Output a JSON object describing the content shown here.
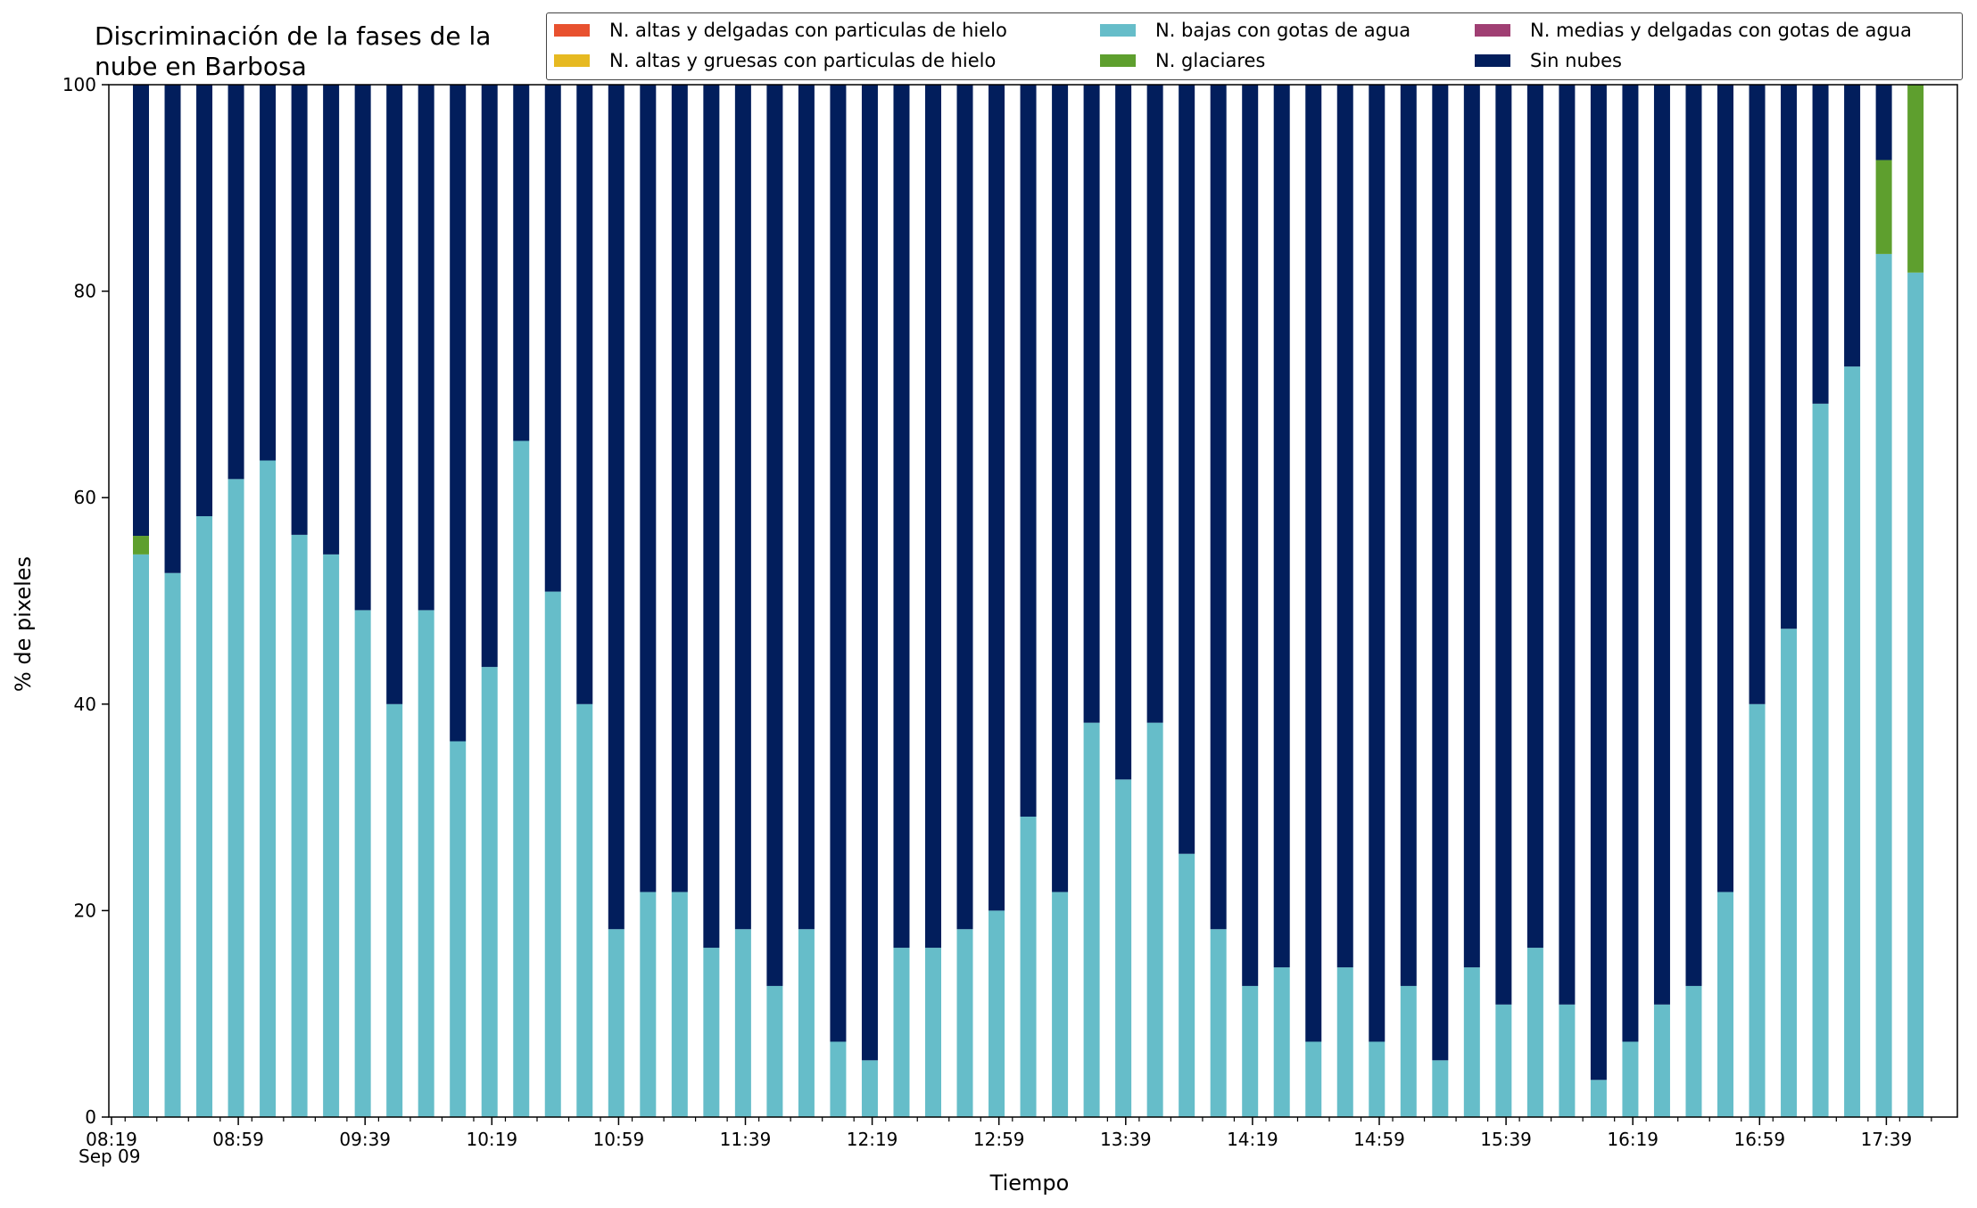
{
  "chart_data": {
    "type": "bar",
    "stacked": true,
    "title": "Discriminación de la fases de la\nnube en Barbosa",
    "xlabel": "Tiempo",
    "ylabel": "% de pixeles",
    "ylim": [
      0,
      100
    ],
    "yticks": [
      0,
      20,
      40,
      60,
      80,
      100
    ],
    "xticks": [
      "08:19",
      "08:59",
      "09:39",
      "10:19",
      "10:59",
      "11:39",
      "12:19",
      "12:59",
      "13:39",
      "14:19",
      "14:59",
      "15:39",
      "16:19",
      "16:59",
      "17:39"
    ],
    "x_sub_label": "Sep 09",
    "legend_position": "upper right, above plot",
    "series": [
      {
        "name": "N. altas y delgadas con particulas de hielo",
        "color": "#e8512f",
        "values": [
          0,
          0,
          0,
          0,
          0,
          0,
          0,
          0,
          0,
          0,
          0,
          0,
          0,
          0,
          0,
          0,
          0,
          0,
          0,
          0,
          0,
          0,
          0,
          0,
          0,
          0,
          0,
          0,
          0,
          0,
          0,
          0,
          0,
          0,
          0,
          0,
          0,
          0,
          0,
          0,
          0,
          0,
          0,
          0,
          0,
          0,
          0,
          0,
          0,
          0,
          0,
          0,
          0,
          0,
          0,
          0,
          0
        ]
      },
      {
        "name": "N. altas y gruesas con particulas de hielo",
        "color": "#e6b921",
        "values": [
          0,
          0,
          0,
          0,
          0,
          0,
          0,
          0,
          0,
          0,
          0,
          0,
          0,
          0,
          0,
          0,
          0,
          0,
          0,
          0,
          0,
          0,
          0,
          0,
          0,
          0,
          0,
          0,
          0,
          0,
          0,
          0,
          0,
          0,
          0,
          0,
          0,
          0,
          0,
          0,
          0,
          0,
          0,
          0,
          0,
          0,
          0,
          0,
          0,
          0,
          0,
          0,
          0,
          0,
          0,
          0,
          0
        ]
      },
      {
        "name": "N. bajas con gotas de agua",
        "color": "#66bdc9",
        "values": [
          54.5,
          52.7,
          58.2,
          61.8,
          63.6,
          56.4,
          54.5,
          49.1,
          40.0,
          49.1,
          36.4,
          43.6,
          65.5,
          50.9,
          40.0,
          18.2,
          21.8,
          21.8,
          16.4,
          18.2,
          12.7,
          18.2,
          7.3,
          5.5,
          16.4,
          16.4,
          18.2,
          20.0,
          29.1,
          21.8,
          38.2,
          32.7,
          38.2,
          25.5,
          18.2,
          12.7,
          14.5,
          7.3,
          14.5,
          7.3,
          12.7,
          5.5,
          14.5,
          10.9,
          16.4,
          10.9,
          3.6,
          7.3,
          10.9,
          12.7,
          21.8,
          40.0,
          47.3,
          69.1,
          72.7,
          83.6,
          81.8
        ]
      },
      {
        "name": "N. glaciares",
        "color": "#5e9f2e",
        "values": [
          1.8,
          0,
          0,
          0,
          0,
          0,
          0,
          0,
          0,
          0,
          0,
          0,
          0,
          0,
          0,
          0,
          0,
          0,
          0,
          0,
          0,
          0,
          0,
          0,
          0,
          0,
          0,
          0,
          0,
          0,
          0,
          0,
          0,
          0,
          0,
          0,
          0,
          0,
          0,
          0,
          0,
          0,
          0,
          0,
          0,
          0,
          0,
          0,
          0,
          0,
          0,
          0,
          0,
          0,
          0,
          9.1,
          18.2
        ]
      },
      {
        "name": "N. medias y delgadas con gotas de agua",
        "color": "#a03f73",
        "values": [
          0,
          0,
          0,
          0,
          0,
          0,
          0,
          0,
          0,
          0,
          0,
          0,
          0,
          0,
          0,
          0,
          0,
          0,
          0,
          0,
          0,
          0,
          0,
          0,
          0,
          0,
          0,
          0,
          0,
          0,
          0,
          0,
          0,
          0,
          0,
          0,
          0,
          0,
          0,
          0,
          0,
          0,
          0,
          0,
          0,
          0,
          0,
          0,
          0,
          0,
          0,
          0,
          0,
          0,
          0,
          0,
          0
        ]
      },
      {
        "name": "Sin nubes",
        "color": "#021e5c",
        "values": [
          43.7,
          47.3,
          41.8,
          38.2,
          36.4,
          43.6,
          45.5,
          50.9,
          60.0,
          50.9,
          63.6,
          56.4,
          34.5,
          49.1,
          60.0,
          81.8,
          78.2,
          78.2,
          83.6,
          81.8,
          87.3,
          81.8,
          92.7,
          94.5,
          83.6,
          83.6,
          81.8,
          80.0,
          70.9,
          78.2,
          61.8,
          67.3,
          61.8,
          74.5,
          81.8,
          87.3,
          85.5,
          92.7,
          85.5,
          92.7,
          87.3,
          94.5,
          85.5,
          89.1,
          83.6,
          89.1,
          96.4,
          92.7,
          89.1,
          87.3,
          78.2,
          60.0,
          52.7,
          30.9,
          27.3,
          7.3,
          0
        ]
      }
    ]
  }
}
